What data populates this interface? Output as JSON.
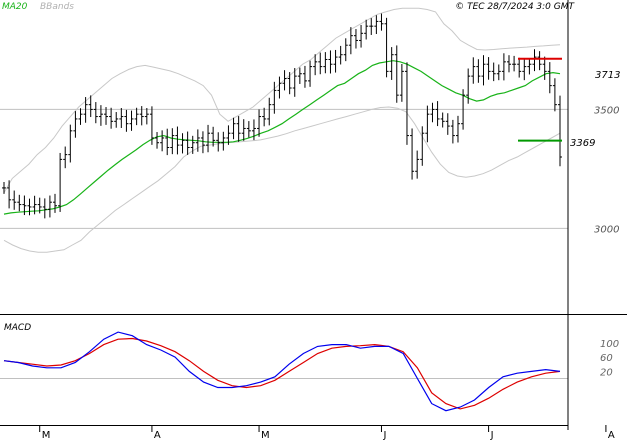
{
  "header": {
    "legend_ma": "MA20",
    "legend_bb": "BBands",
    "source": "© TEC 28/7/2024 3:0 GMT"
  },
  "colors": {
    "price_bars": "#000000",
    "ma": "#19b319",
    "bbands": "#c8c8c8",
    "resistance": "#dd0000",
    "support": "#009900",
    "macd_line": "#0000ee",
    "signal_line": "#dd0000",
    "grid": "#c0c0c0",
    "axis": "#000000"
  },
  "chart_data": [
    {
      "type": "line",
      "y_ticks": [
        3000,
        3500
      ],
      "y_tick_labels": [
        "3000",
        "3500"
      ],
      "ylim": [
        2640,
        3960
      ],
      "x_tick_labels": [
        "M",
        "A",
        "M",
        "J",
        "J",
        "A"
      ],
      "x_tick_index": [
        7,
        29,
        50,
        74,
        95,
        118
      ],
      "grid": true,
      "levels": {
        "resistance": {
          "value": 3713,
          "label": "3713"
        },
        "support": {
          "value": 3369,
          "label": "3369"
        }
      },
      "ohlc_close": [
        3170,
        3120,
        3110,
        3100,
        3095,
        3090,
        3100,
        3090,
        3080,
        3110,
        3095,
        3290,
        3310,
        3410,
        3460,
        3480,
        3520,
        3500,
        3470,
        3480,
        3470,
        3450,
        3460,
        3470,
        3440,
        3460,
        3480,
        3470,
        3480,
        3380,
        3360,
        3380,
        3340,
        3390,
        3350,
        3370,
        3340,
        3360,
        3380,
        3350,
        3400,
        3370,
        3360,
        3380,
        3400,
        3440,
        3400,
        3420,
        3410,
        3420,
        3470,
        3460,
        3520,
        3580,
        3610,
        3630,
        3590,
        3640,
        3650,
        3620,
        3680,
        3700,
        3680,
        3710,
        3690,
        3720,
        3730,
        3770,
        3810,
        3790,
        3820,
        3850,
        3850,
        3870,
        3860,
        3660,
        3730,
        3560,
        3660,
        3390,
        3240,
        3290,
        3400,
        3480,
        3500,
        3460,
        3450,
        3430,
        3390,
        3440,
        3560,
        3640,
        3680,
        3640,
        3690,
        3660,
        3650,
        3660,
        3700,
        3690,
        3690,
        3660,
        3680,
        3690,
        3720,
        3690,
        3660,
        3600,
        3520,
        3300
      ],
      "ma20": [
        3060,
        3065,
        3068,
        3070,
        3072,
        3074,
        3078,
        3082,
        3090,
        3100,
        3120,
        3145,
        3170,
        3195,
        3220,
        3245,
        3268,
        3290,
        3310,
        3330,
        3352,
        3370,
        3385,
        3390,
        3380,
        3375,
        3372,
        3370,
        3368,
        3364,
        3362,
        3362,
        3362,
        3364,
        3370,
        3378,
        3388,
        3400,
        3410,
        3425,
        3440,
        3460,
        3480,
        3500,
        3520,
        3540,
        3560,
        3580,
        3600,
        3610,
        3630,
        3650,
        3665,
        3685,
        3695,
        3700,
        3705,
        3700,
        3690,
        3675,
        3660,
        3640,
        3620,
        3600,
        3585,
        3570,
        3560,
        3545,
        3535,
        3540,
        3555,
        3565,
        3570,
        3580,
        3590,
        3600,
        3620,
        3635,
        3650,
        3655,
        3650
      ],
      "bb_upper": [
        3150,
        3210,
        3240,
        3270,
        3310,
        3340,
        3380,
        3430,
        3470,
        3510,
        3540,
        3570,
        3600,
        3630,
        3650,
        3668,
        3680,
        3685,
        3678,
        3670,
        3662,
        3650,
        3635,
        3620,
        3600,
        3560,
        3480,
        3450,
        3470,
        3490,
        3510,
        3540,
        3570,
        3600,
        3630,
        3660,
        3690,
        3710,
        3740,
        3770,
        3800,
        3820,
        3840,
        3860,
        3880,
        3900,
        3910,
        3920,
        3925,
        3925,
        3925,
        3920,
        3910,
        3860,
        3830,
        3790,
        3770,
        3752,
        3750,
        3752,
        3755,
        3758,
        3760,
        3762,
        3765,
        3767,
        3770,
        3772
      ],
      "bb_lower": [
        2950,
        2930,
        2915,
        2905,
        2900,
        2900,
        2905,
        2910,
        2930,
        2950,
        2985,
        3015,
        3045,
        3075,
        3100,
        3125,
        3150,
        3175,
        3200,
        3230,
        3260,
        3300,
        3325,
        3345,
        3350,
        3355,
        3360,
        3362,
        3365,
        3368,
        3372,
        3380,
        3388,
        3398,
        3410,
        3420,
        3430,
        3440,
        3450,
        3460,
        3470,
        3480,
        3490,
        3500,
        3508,
        3510,
        3505,
        3490,
        3440,
        3380,
        3320,
        3270,
        3235,
        3220,
        3215,
        3220,
        3230,
        3245,
        3265,
        3285,
        3300,
        3320,
        3340,
        3360,
        3380,
        3400
      ]
    },
    {
      "type": "line",
      "title": "MACD",
      "y_ticks": [
        100,
        60,
        20
      ],
      "y_tick_labels": [
        "100",
        "60",
        "20"
      ],
      "ylim": [
        -130,
        175
      ],
      "series": [
        {
          "values": [
            50,
            45,
            35,
            30,
            30,
            45,
            75,
            110,
            130,
            120,
            95,
            80,
            60,
            20,
            -10,
            -25,
            -25,
            -20,
            -10,
            5,
            40,
            70,
            90,
            95,
            95,
            85,
            90,
            90,
            70,
            0,
            -70,
            -90,
            -80,
            -60,
            -25,
            5,
            15,
            20,
            25,
            20
          ]
        },
        {
          "values": [
            50,
            45,
            40,
            35,
            38,
            50,
            70,
            95,
            110,
            112,
            105,
            92,
            75,
            50,
            20,
            -5,
            -20,
            -25,
            -20,
            -5,
            20,
            45,
            70,
            85,
            90,
            92,
            95,
            90,
            75,
            30,
            -40,
            -70,
            -85,
            -75,
            -55,
            -30,
            -10,
            5,
            15,
            20
          ]
        }
      ]
    }
  ]
}
